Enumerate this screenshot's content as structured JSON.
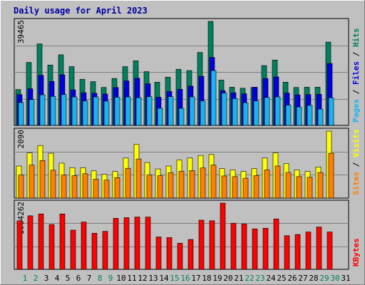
{
  "chart_data": {
    "type": "bar",
    "title": "Daily usage for April 2023",
    "categories": [
      "1",
      "2",
      "3",
      "4",
      "5",
      "6",
      "7",
      "8",
      "9",
      "10",
      "11",
      "12",
      "13",
      "14",
      "15",
      "16",
      "17",
      "18",
      "19",
      "20",
      "21",
      "22",
      "23",
      "24",
      "25",
      "26",
      "27",
      "28",
      "29",
      "30",
      "31"
    ],
    "weekend_days": [
      "1",
      "2",
      "8",
      "9",
      "15",
      "16",
      "22",
      "23",
      "29",
      "30"
    ],
    "panels": [
      {
        "id": "hits",
        "ymax_label": "39465",
        "ymax": 39465,
        "side_labels": [
          "Pages",
          "Files",
          "Hits"
        ],
        "series": [
          {
            "name": "Hits",
            "color": "#00805f",
            "values": [
              13600,
              23900,
              30900,
              22900,
              26800,
              22300,
              17500,
              16600,
              14400,
              17800,
              22300,
              24500,
              20400,
              16400,
              18300,
              21300,
              20800,
              27700,
              39465,
              17200,
              14500,
              14100,
              14400,
              22700,
              24800,
              16400,
              14400,
              14500,
              14500,
              31600
            ]
          },
          {
            "name": "Files",
            "color": "#0000e0",
            "values": [
              11700,
              13900,
              19000,
              16700,
              19200,
              13500,
              12400,
              12200,
              11900,
              14400,
              16900,
              17900,
              15800,
              10700,
              12900,
              13700,
              14900,
              18600,
              25800,
              13200,
              12400,
              12000,
              14500,
              17800,
              18400,
              12300,
              11600,
              11700,
              11800,
              23500
            ]
          },
          {
            "name": "Pages",
            "color": "#1ab2ef",
            "values": [
              8700,
              9800,
              11600,
              11000,
              11700,
              10800,
              9300,
              10800,
              9200,
              10700,
              10800,
              10500,
              10900,
              6500,
              10900,
              6500,
              10800,
              9300,
              20800,
              12300,
              10200,
              8600,
              9300,
              10600,
              10800,
              7700,
              7000,
              7600,
              6200,
              10500
            ]
          }
        ]
      },
      {
        "id": "visits",
        "ymax_label": "2090",
        "ymax": 2090,
        "side_labels": [
          "Sites",
          "Visits"
        ],
        "series": [
          {
            "name": "Visits",
            "color": "#ffff00",
            "values": [
              1000,
              1410,
              1640,
              1400,
              1090,
              950,
              950,
              850,
              740,
              830,
              1250,
              1680,
              1110,
              910,
              1000,
              1190,
              1250,
              1330,
              1360,
              920,
              880,
              830,
              920,
              1250,
              1410,
              1080,
              880,
              830,
              970,
              2090
            ]
          },
          {
            "name": "Sites",
            "color": "#ff8000",
            "values": [
              720,
              1030,
              1170,
              870,
              720,
              700,
              760,
              590,
              560,
              640,
              930,
              1220,
              720,
              700,
              790,
              840,
              860,
              940,
              1030,
              690,
              670,
              620,
              700,
              880,
              1000,
              800,
              670,
              650,
              800,
              1400
            ]
          }
        ]
      },
      {
        "id": "kbytes",
        "ymax_label": "1064262",
        "ymax": 1064262,
        "side_labels": [
          "KBytes"
        ],
        "series": [
          {
            "name": "KBytes",
            "color": "#ff0000",
            "values": [
              780000,
              860000,
              890000,
              720000,
              890000,
              630000,
              760000,
              580000,
              610000,
              820000,
              830000,
              840000,
              840000,
              520000,
              510000,
              420000,
              480000,
              790000,
              780000,
              1064262,
              740000,
              730000,
              650000,
              660000,
              810000,
              540000,
              560000,
              600000,
              680000,
              600000
            ]
          }
        ]
      }
    ]
  }
}
